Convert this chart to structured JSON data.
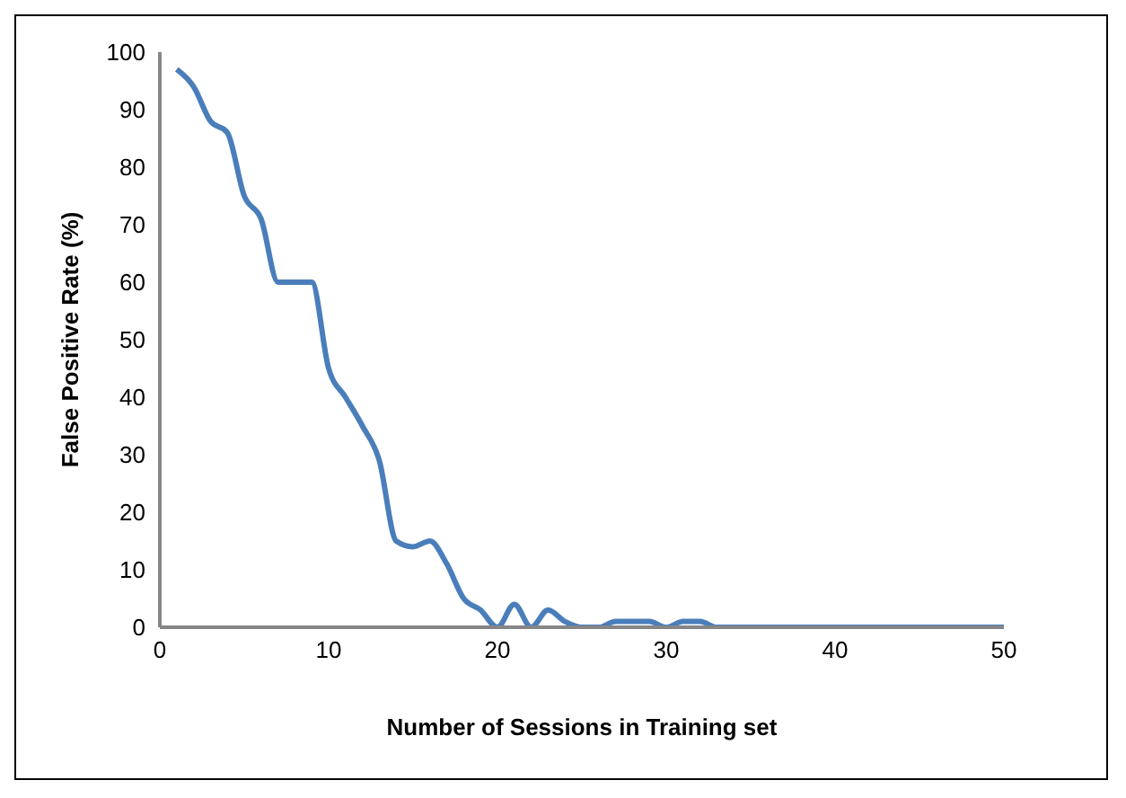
{
  "chart_data": {
    "type": "line",
    "xlabel": "Number of Sessions in Training set",
    "ylabel": "False Positive Rate (%)",
    "x": [
      1,
      2,
      3,
      4,
      5,
      6,
      7,
      8,
      9,
      10,
      11,
      12,
      13,
      14,
      15,
      16,
      17,
      18,
      19,
      20,
      21,
      22,
      23,
      24,
      25,
      26,
      27,
      28,
      29,
      30,
      31,
      32,
      33,
      34,
      35,
      36,
      37,
      38,
      39,
      40,
      41,
      42,
      43,
      44,
      45,
      46,
      47,
      48,
      49,
      50
    ],
    "series": [
      {
        "color": "#4a7ebb",
        "values": [
          97,
          94,
          88,
          86,
          75,
          71,
          60,
          60,
          60,
          45,
          40,
          35,
          29,
          15,
          14,
          15,
          11,
          5,
          3,
          0,
          4,
          0,
          3,
          1,
          0,
          0,
          1,
          1,
          1,
          0,
          1,
          1,
          0,
          0,
          0,
          0,
          0,
          0,
          0,
          0,
          0,
          0,
          0,
          0,
          0,
          0,
          0,
          0,
          0,
          0
        ]
      }
    ],
    "xlim": [
      0,
      50
    ],
    "xticks": [
      0,
      10,
      20,
      30,
      40,
      50
    ],
    "ylim": [
      0,
      100
    ],
    "yticks": [
      0,
      10,
      20,
      30,
      40,
      50,
      60,
      70,
      80,
      90,
      100
    ],
    "grid": false,
    "legend": false,
    "marker": "none",
    "line_style": "solid"
  }
}
